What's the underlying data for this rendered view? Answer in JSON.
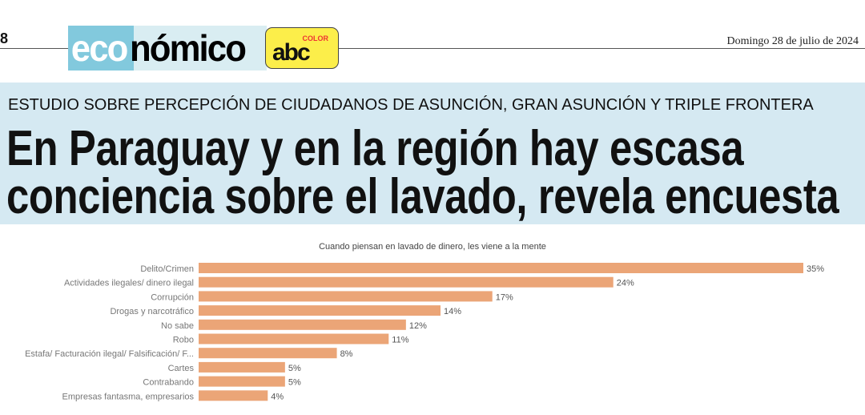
{
  "header": {
    "page_number": "8",
    "section_logo": "económico",
    "section_logo_parts": [
      "eco",
      "nómico"
    ],
    "brand_logo": "abc",
    "brand_logo_small": "COLOR",
    "date": "Domingo 28 de julio de 2024"
  },
  "article": {
    "kicker": "ESTUDIO SOBRE PERCEPCIÓN DE CIUDADANOS DE ASUNCIÓN, GRAN ASUNCIÓN Y TRIPLE FRONTERA",
    "headline_line1": "En Paraguay y en la región hay escasa",
    "headline_line2": "conciencia sobre el lavado, revela encuesta"
  },
  "colors": {
    "bar": "#eba577",
    "band": "#d5e9f2"
  },
  "chart_data": {
    "type": "bar",
    "orientation": "horizontal",
    "title": "Cuando piensan en lavado de dinero, les viene a la mente",
    "categories": [
      "Delito/Crimen",
      "Actividades ilegales/ dinero ilegal",
      "Corrupción",
      "Drogas y narcotráfico",
      "No sabe",
      "Robo",
      "Estafa/ Facturación ilegal/ Falsificación/ F...",
      "Cartes",
      "Contrabando",
      "Empresas fantasma, empresarios"
    ],
    "values": [
      35,
      24,
      17,
      14,
      12,
      11,
      8,
      5,
      5,
      4
    ],
    "labels": [
      "35%",
      "24%",
      "17%",
      "14%",
      "12%",
      "11%",
      "8%",
      "5%",
      "5%",
      "4%"
    ],
    "unit": "%",
    "grid": false
  }
}
